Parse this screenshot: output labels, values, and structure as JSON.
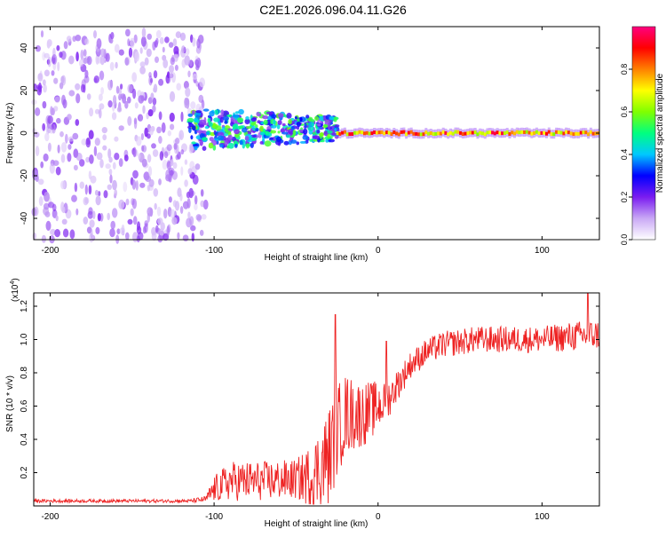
{
  "page_title": "C2E1.2026.096.04.11.G26",
  "chart_data": [
    {
      "type": "heatmap",
      "title": "C2E1.2026.096.04.11.G26",
      "xlabel": "Height of straight line (km)",
      "ylabel": "Frequency (Hz)",
      "xlim": [
        -210,
        135
      ],
      "ylim": [
        -50,
        50
      ],
      "xticks": [
        -200,
        -100,
        0,
        100
      ],
      "yticks": [
        -40,
        -20,
        0,
        20,
        40
      ],
      "colorbar": {
        "label": "Normalized spectral amplitude",
        "range": [
          0,
          1
        ],
        "ticks": [
          "0.0",
          "0.2",
          "0.4",
          "0.6",
          "0.8"
        ],
        "tick_values": [
          0.0,
          0.2,
          0.4,
          0.6,
          0.8
        ],
        "colors": [
          "#ffffff",
          "#c9a8f5",
          "#7a1cf0",
          "#0000ff",
          "#00c8ff",
          "#00ff80",
          "#80ff00",
          "#ffff00",
          "#ff8000",
          "#ff0000",
          "#ff0080"
        ]
      },
      "regions": [
        {
          "name": "noise",
          "x_range": [
            -210,
            -105
          ],
          "freq_range": [
            -50,
            48
          ],
          "amplitude": [
            0.05,
            0.2
          ]
        },
        {
          "name": "scatter",
          "x_range": [
            -115,
            -25
          ],
          "freq_range": [
            -12,
            12
          ],
          "amplitude": [
            0.15,
            0.6
          ]
        },
        {
          "name": "trace",
          "x_range": [
            -25,
            135
          ],
          "center_freq": 0,
          "amplitude": [
            0.6,
            0.95
          ]
        }
      ]
    },
    {
      "type": "line",
      "xlabel": "Height of straight line (km)",
      "ylabel": "SNR (10 * v/v)",
      "y_scale": "(x10",
      "y_scale_exp": "4",
      "y_scale_close": ")",
      "xlim": [
        -210,
        135
      ],
      "ylim": [
        0,
        1.28
      ],
      "xticks": [
        -200,
        -100,
        0,
        100
      ],
      "yticks": [
        0.2,
        0.4,
        0.6,
        0.8,
        1.0,
        1.2
      ],
      "color": "#ee2222",
      "series": [
        {
          "name": "SNR",
          "profile_x": [
            -210,
            -115,
            -105,
            -100,
            -90,
            -70,
            -50,
            -40,
            -30,
            -25,
            -20,
            -15,
            -10,
            -5,
            0,
            5,
            10,
            20,
            30,
            40,
            60,
            80,
            100,
            120,
            135
          ],
          "profile_y": [
            0.03,
            0.03,
            0.04,
            0.1,
            0.15,
            0.15,
            0.16,
            0.18,
            0.3,
            0.45,
            0.55,
            0.55,
            0.55,
            0.57,
            0.6,
            0.62,
            0.7,
            0.85,
            0.93,
            0.97,
            1.0,
            1.0,
            1.0,
            1.02,
            1.03
          ],
          "noise_amplitude": [
            0.01,
            0.01,
            0.02,
            0.08,
            0.12,
            0.12,
            0.12,
            0.2,
            0.3,
            0.28,
            0.25,
            0.22,
            0.2,
            0.18,
            0.15,
            0.12,
            0.1,
            0.08,
            0.08,
            0.08,
            0.08,
            0.08,
            0.08,
            0.09,
            0.09
          ],
          "peaks": [
            [
              -26,
              1.15
            ],
            [
              5,
              0.99
            ],
            [
              128,
              1.28
            ]
          ]
        }
      ]
    }
  ]
}
